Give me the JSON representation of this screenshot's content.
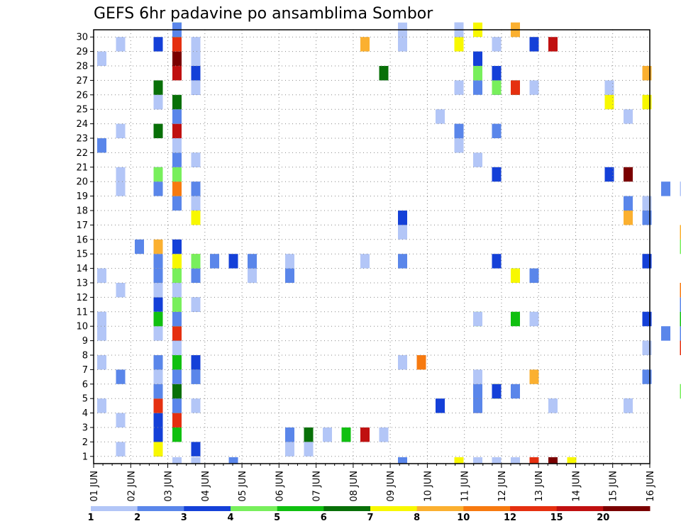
{
  "chart_data": {
    "type": "heatmap",
    "title": "GEFS 6hr padavine po ansamblima Sombor",
    "y_labels": [
      "1",
      "2",
      "3",
      "4",
      "5",
      "6",
      "7",
      "8",
      "9",
      "10",
      "11",
      "12",
      "13",
      "14",
      "15",
      "16",
      "17",
      "18",
      "19",
      "20",
      "21",
      "22",
      "23",
      "24",
      "25",
      "26",
      "27",
      "28",
      "29",
      "30"
    ],
    "x_labels": [
      "01 JUN",
      "02 JUN",
      "03 JUN",
      "04 JUN",
      "05 JUN",
      "06 JUN",
      "07 JUN",
      "08 JUN",
      "09 JUN",
      "10 JUN",
      "11 JUN",
      "12 JUN",
      "13 JUN",
      "14 JUN",
      "15 JUN",
      "16 JUN"
    ],
    "grid": true,
    "colorbar": {
      "ticks": [
        "1",
        "2",
        "3",
        "4",
        "5",
        "6",
        "7",
        "8",
        "10",
        "12",
        "15",
        "20"
      ],
      "colors": [
        "#b3c6f7",
        "#5a86ea",
        "#1440d8",
        "#78ef5c",
        "#10c010",
        "#087008",
        "#f8f800",
        "#fbb030",
        "#f77a10",
        "#e53010",
        "#c01010",
        "#7a0000"
      ]
    },
    "cells": [
      [
        1,
        1,
        0
      ],
      [
        3,
        1,
        5
      ],
      [
        3,
        1,
        8
      ],
      [
        3,
        1,
        6
      ],
      [
        5,
        1,
        2
      ],
      [
        10,
        1,
        0
      ],
      [
        11,
        1,
        0
      ],
      [
        3,
        2,
        2
      ],
      [
        4,
        2,
        4
      ],
      [
        10,
        2,
        0
      ],
      [
        10,
        2,
        1
      ],
      [
        11,
        2,
        5
      ],
      [
        12,
        2,
        0
      ],
      [
        13,
        2,
        0
      ],
      [
        13,
        2,
        1
      ],
      [
        13,
        2,
        4
      ],
      [
        14,
        2,
        10
      ],
      [
        15,
        2,
        0
      ],
      [
        15,
        2,
        0
      ],
      [
        1,
        3,
        0
      ],
      [
        3,
        3,
        2
      ],
      [
        4,
        3,
        9
      ],
      [
        4,
        3,
        9
      ],
      [
        0,
        4,
        0
      ],
      [
        3,
        4,
        1
      ],
      [
        3,
        4,
        8
      ],
      [
        3,
        4,
        9
      ],
      [
        4,
        4,
        6
      ],
      [
        4,
        4,
        1
      ],
      [
        4,
        4,
        1
      ],
      [
        5,
        4,
        0
      ],
      [
        18,
        4,
        2
      ],
      [
        20,
        4,
        9
      ],
      [
        20,
        4,
        1
      ],
      [
        20,
        4,
        1
      ],
      [
        24,
        4,
        0
      ],
      [
        24,
        4,
        0
      ],
      [
        28,
        4,
        1
      ],
      [
        28,
        4,
        0
      ],
      [
        3,
        5,
        0
      ],
      [
        3,
        5,
        1
      ],
      [
        4,
        5,
        5
      ],
      [
        20,
        5,
        1
      ],
      [
        20,
        5,
        1
      ],
      [
        21,
        5,
        5
      ],
      [
        21,
        5,
        6
      ],
      [
        21,
        5,
        2
      ],
      [
        22,
        5,
        1
      ],
      [
        31,
        5,
        0
      ],
      [
        31,
        5,
        3
      ],
      [
        33,
        5,
        0
      ],
      [
        33,
        5,
        0
      ],
      [
        1,
        6,
        1
      ],
      [
        3,
        6,
        0
      ],
      [
        3,
        6,
        0
      ],
      [
        4,
        6,
        8
      ],
      [
        4,
        6,
        1
      ],
      [
        5,
        6,
        1
      ],
      [
        5,
        6,
        1
      ],
      [
        20,
        6,
        0
      ],
      [
        23,
        6,
        7
      ],
      [
        29,
        6,
        1
      ],
      [
        0,
        7,
        0
      ],
      [
        3,
        7,
        1
      ],
      [
        4,
        7,
        0
      ],
      [
        4,
        7,
        4
      ],
      [
        5,
        7,
        2
      ],
      [
        16,
        7,
        0
      ],
      [
        17,
        7,
        8
      ],
      [
        4,
        8,
        1
      ],
      [
        4,
        8,
        0
      ],
      [
        29,
        8,
        0
      ],
      [
        29,
        8,
        0
      ],
      [
        31,
        8,
        6
      ],
      [
        31,
        8,
        9
      ],
      [
        0,
        9,
        0
      ],
      [
        3,
        9,
        0
      ],
      [
        4,
        9,
        1
      ],
      [
        4,
        9,
        9
      ],
      [
        30,
        9,
        1
      ],
      [
        31,
        9,
        11
      ],
      [
        31,
        9,
        1
      ],
      [
        0,
        10,
        0
      ],
      [
        0,
        10,
        0
      ],
      [
        3,
        10,
        3
      ],
      [
        3,
        10,
        4
      ],
      [
        4,
        10,
        3
      ],
      [
        4,
        10,
        1
      ],
      [
        20,
        10,
        3
      ],
      [
        20,
        10,
        0
      ],
      [
        22,
        10,
        4
      ],
      [
        23,
        10,
        0
      ],
      [
        29,
        10,
        0
      ],
      [
        29,
        10,
        2
      ],
      [
        31,
        10,
        7
      ],
      [
        31,
        10,
        4
      ],
      [
        33,
        10,
        7
      ],
      [
        33,
        10,
        0
      ],
      [
        3,
        11,
        2
      ],
      [
        4,
        11,
        6
      ],
      [
        4,
        11,
        3
      ],
      [
        5,
        11,
        2
      ],
      [
        5,
        11,
        0
      ],
      [
        31,
        11,
        1
      ],
      [
        1,
        12,
        0
      ],
      [
        3,
        12,
        0
      ],
      [
        4,
        12,
        3
      ],
      [
        4,
        12,
        0
      ],
      [
        31,
        12,
        8
      ],
      [
        0,
        13,
        0
      ],
      [
        0,
        13,
        0
      ],
      [
        3,
        13,
        1
      ],
      [
        4,
        13,
        1
      ],
      [
        4,
        13,
        7
      ],
      [
        4,
        13,
        3
      ],
      [
        5,
        13,
        1
      ],
      [
        8,
        13,
        1
      ],
      [
        8,
        13,
        0
      ],
      [
        10,
        13,
        1
      ],
      [
        22,
        13,
        4
      ],
      [
        22,
        13,
        6
      ],
      [
        23,
        13,
        1
      ],
      [
        3,
        14,
        1
      ],
      [
        4,
        14,
        6
      ],
      [
        5,
        14,
        6
      ],
      [
        5,
        14,
        3
      ],
      [
        6,
        14,
        1
      ],
      [
        7,
        14,
        2
      ],
      [
        8,
        14,
        1
      ],
      [
        10,
        14,
        0
      ],
      [
        14,
        14,
        0
      ],
      [
        16,
        14,
        1
      ],
      [
        21,
        14,
        2
      ],
      [
        29,
        14,
        0
      ],
      [
        29,
        14,
        2
      ],
      [
        33,
        14,
        4
      ],
      [
        33,
        14,
        6
      ],
      [
        2,
        15,
        1
      ],
      [
        3,
        15,
        7
      ],
      [
        4,
        15,
        2
      ],
      [
        31,
        15,
        0
      ],
      [
        31,
        15,
        3
      ],
      [
        33,
        15,
        4
      ],
      [
        16,
        16,
        0
      ],
      [
        31,
        16,
        7
      ],
      [
        5,
        17,
        6
      ],
      [
        16,
        17,
        2
      ],
      [
        28,
        17,
        7
      ],
      [
        29,
        17,
        1
      ],
      [
        4,
        18,
        1
      ],
      [
        5,
        18,
        0
      ],
      [
        28,
        18,
        1
      ],
      [
        29,
        18,
        0
      ],
      [
        29,
        18,
        0
      ],
      [
        1,
        19,
        0
      ],
      [
        3,
        19,
        1
      ],
      [
        4,
        19,
        6
      ],
      [
        4,
        19,
        8
      ],
      [
        5,
        19,
        0
      ],
      [
        5,
        19,
        1
      ],
      [
        30,
        19,
        1
      ],
      [
        31,
        19,
        0
      ],
      [
        33,
        19,
        7
      ],
      [
        33,
        19,
        5
      ],
      [
        1,
        20,
        0
      ],
      [
        3,
        20,
        1
      ],
      [
        3,
        20,
        3
      ],
      [
        4,
        20,
        8
      ],
      [
        4,
        20,
        3
      ],
      [
        21,
        20,
        2
      ],
      [
        27,
        20,
        2
      ],
      [
        28,
        20,
        11
      ],
      [
        4,
        21,
        0
      ],
      [
        4,
        21,
        1
      ],
      [
        5,
        21,
        1
      ],
      [
        5,
        21,
        0
      ],
      [
        20,
        21,
        0
      ],
      [
        0,
        22,
        1
      ],
      [
        4,
        22,
        0
      ],
      [
        19,
        22,
        0
      ],
      [
        19,
        22,
        0
      ],
      [
        33,
        22,
        0
      ],
      [
        33,
        22,
        5
      ],
      [
        1,
        23,
        0
      ],
      [
        3,
        23,
        5
      ],
      [
        4,
        23,
        10
      ],
      [
        19,
        23,
        1
      ],
      [
        21,
        23,
        1
      ],
      [
        4,
        24,
        0
      ],
      [
        4,
        24,
        1
      ],
      [
        18,
        24,
        0
      ],
      [
        28,
        24,
        0
      ],
      [
        3,
        25,
        1
      ],
      [
        3,
        25,
        0
      ],
      [
        4,
        25,
        5
      ],
      [
        27,
        25,
        0
      ],
      [
        27,
        25,
        6
      ],
      [
        29,
        25,
        6
      ],
      [
        3,
        26,
        5
      ],
      [
        5,
        26,
        2
      ],
      [
        5,
        26,
        0
      ],
      [
        19,
        26,
        0
      ],
      [
        20,
        26,
        1
      ],
      [
        21,
        26,
        2
      ],
      [
        21,
        26,
        3
      ],
      [
        22,
        26,
        5
      ],
      [
        22,
        26,
        9
      ],
      [
        23,
        26,
        0
      ],
      [
        27,
        26,
        0
      ],
      [
        4,
        27,
        10
      ],
      [
        5,
        27,
        2
      ],
      [
        15,
        27,
        0
      ],
      [
        15,
        27,
        5
      ],
      [
        20,
        27,
        3
      ],
      [
        21,
        27,
        2
      ],
      [
        29,
        27,
        7
      ],
      [
        0,
        28,
        0
      ],
      [
        0,
        28,
        0
      ],
      [
        4,
        28,
        11
      ],
      [
        5,
        28,
        0
      ],
      [
        20,
        28,
        2
      ],
      [
        33,
        28,
        0
      ],
      [
        33,
        28,
        3
      ],
      [
        1,
        29,
        0
      ],
      [
        3,
        29,
        2
      ],
      [
        4,
        29,
        9
      ],
      [
        5,
        29,
        0
      ],
      [
        14,
        29,
        7
      ],
      [
        16,
        29,
        0
      ],
      [
        19,
        29,
        6
      ],
      [
        21,
        29,
        0
      ],
      [
        23,
        29,
        2
      ],
      [
        24,
        29,
        10
      ],
      [
        33,
        29,
        2
      ],
      [
        4,
        30,
        4
      ],
      [
        4,
        30,
        1
      ],
      [
        16,
        30,
        0
      ],
      [
        19,
        30,
        1
      ],
      [
        19,
        30,
        0
      ],
      [
        20,
        30,
        6
      ],
      [
        22,
        30,
        7
      ],
      [
        22,
        30,
        7
      ]
    ],
    "bottom_strip": [
      [
        4,
        0
      ],
      [
        5,
        0
      ],
      [
        5,
        0
      ],
      [
        7,
        1
      ],
      [
        16,
        1
      ],
      [
        19,
        6
      ],
      [
        20,
        0
      ],
      [
        21,
        0
      ],
      [
        22,
        0
      ],
      [
        23,
        1
      ],
      [
        23,
        9
      ],
      [
        24,
        2
      ],
      [
        24,
        6
      ],
      [
        24,
        11
      ],
      [
        25,
        6
      ]
    ]
  }
}
